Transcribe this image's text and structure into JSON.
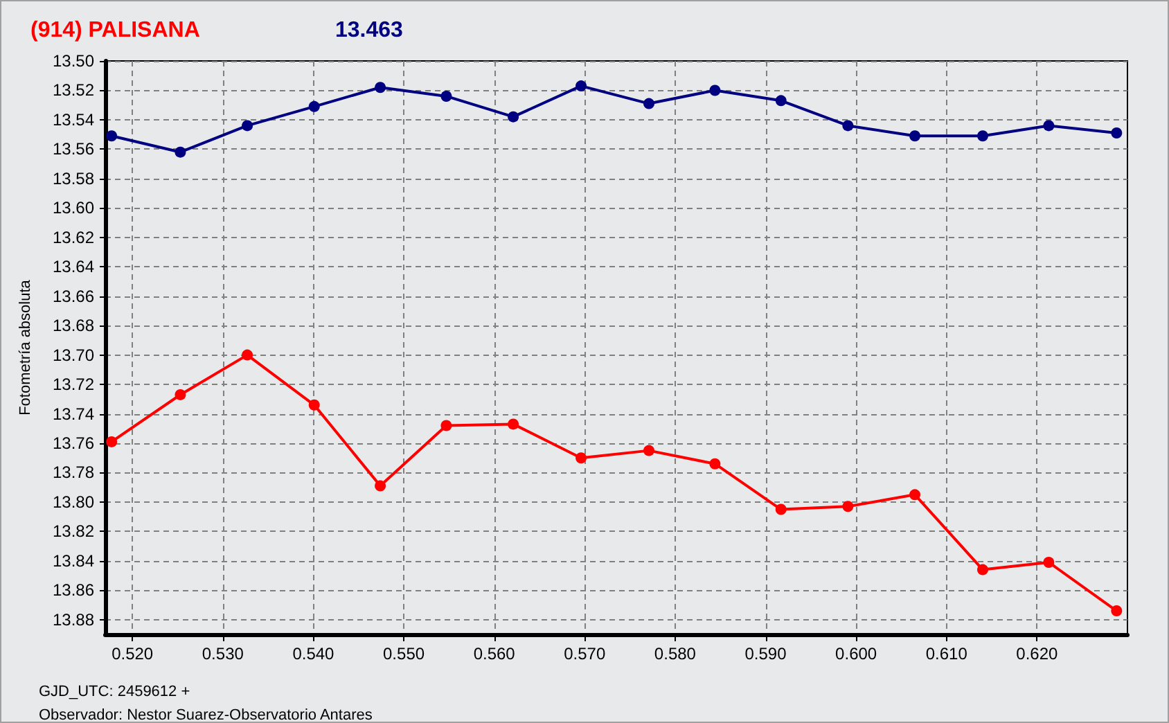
{
  "chart_data": {
    "type": "line",
    "title": "(914) PALISANA",
    "subtitle": "13.463",
    "ylabel": "Fotometría absoluta",
    "annotations": [
      "GJD_UTC: 2459612 +",
      "Observador: Nestor Suarez-Observatorio Antares"
    ],
    "x": [
      0.5177,
      0.5253,
      0.5327,
      0.5401,
      0.5474,
      0.5547,
      0.5621,
      0.5696,
      0.5771,
      0.5844,
      0.5917,
      0.5991,
      0.6065,
      0.614,
      0.6213,
      0.6288
    ],
    "series": [
      {
        "color": "#000080",
        "values": [
          13.551,
          13.562,
          13.544,
          13.531,
          13.518,
          13.524,
          13.538,
          13.517,
          13.529,
          13.52,
          13.527,
          13.544,
          13.551,
          13.551,
          13.544,
          13.549
        ]
      },
      {
        "color": "#ff0000",
        "values": [
          13.759,
          13.727,
          13.7,
          13.734,
          13.789,
          13.748,
          13.747,
          13.77,
          13.765,
          13.774,
          13.805,
          13.803,
          13.795,
          13.846,
          13.841,
          13.874
        ]
      }
    ],
    "xlim": [
      0.517,
      0.63
    ],
    "xticks": [
      {
        "value": 0.52,
        "label": "0.520"
      },
      {
        "value": 0.53,
        "label": "0.530"
      },
      {
        "value": 0.54,
        "label": "0.540"
      },
      {
        "value": 0.55,
        "label": "0.550"
      },
      {
        "value": 0.56,
        "label": "0.560"
      },
      {
        "value": 0.57,
        "label": "0.570"
      },
      {
        "value": 0.58,
        "label": "0.580"
      },
      {
        "value": 0.59,
        "label": "0.590"
      },
      {
        "value": 0.6,
        "label": "0.600"
      },
      {
        "value": 0.61,
        "label": "0.610"
      },
      {
        "value": 0.62,
        "label": "0.620"
      }
    ],
    "ylim": [
      13.89,
      13.5
    ],
    "yticks": [
      {
        "value": 13.5,
        "label": "13.50"
      },
      13.52,
      13.54,
      13.56,
      13.58,
      {
        "value": 13.6,
        "label": "13.60"
      },
      13.62,
      13.64,
      13.66,
      13.68,
      {
        "value": 13.7,
        "label": "13.70"
      },
      13.72,
      13.74,
      13.76,
      13.78,
      {
        "value": 13.8,
        "label": "13.80"
      },
      13.82,
      13.84,
      13.86,
      13.88
    ],
    "grid": true,
    "marker": "circle",
    "line_style": "solid"
  }
}
